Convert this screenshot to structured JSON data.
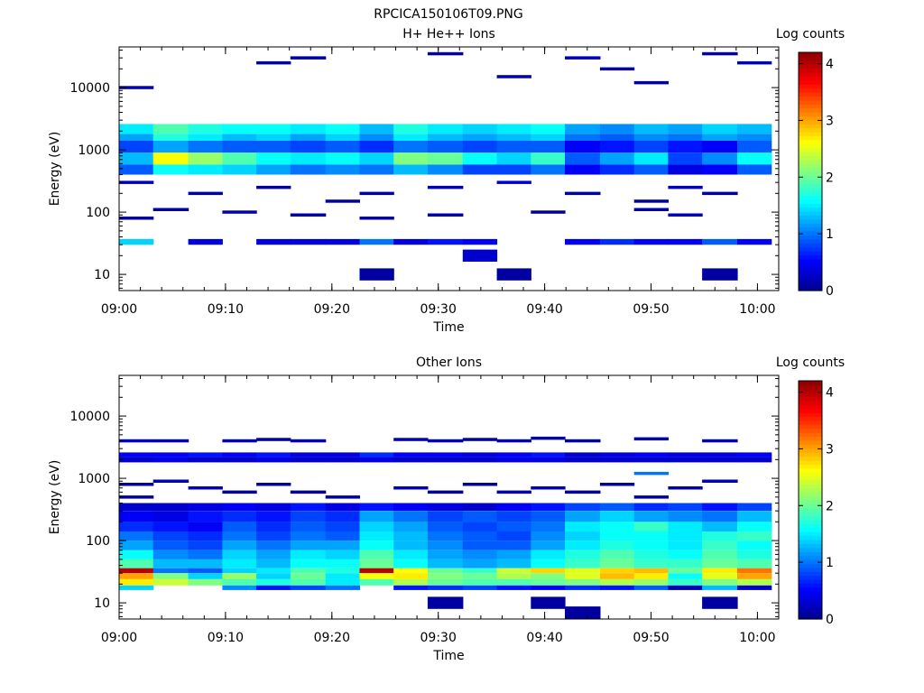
{
  "page_title": "RPCICA150106T09.PNG",
  "colormap": [
    "#00008b",
    "#0000ff",
    "#0080ff",
    "#00ffff",
    "#80ff80",
    "#ffff00",
    "#ff8000",
    "#ff0000",
    "#8b0000"
  ],
  "chart_data": [
    {
      "type": "heatmap",
      "title": "H+ He++ Ions",
      "xlabel": "Time",
      "ylabel": "Energy (eV)",
      "yscale": "log",
      "xlim": [
        "09:00",
        "10:02"
      ],
      "ylim": [
        5.5,
        45000
      ],
      "xticks": [
        "09:00",
        "09:10",
        "09:20",
        "09:30",
        "09:40",
        "09:50",
        "10:00"
      ],
      "yticks": [
        "10",
        "100",
        "1000",
        "10000"
      ],
      "colorbar": {
        "label": "Log counts",
        "range": [
          0,
          4.2
        ],
        "ticks": [
          "0",
          "1",
          "2",
          "3",
          "4"
        ]
      },
      "time_bins": [
        "09:00",
        "09:03.2",
        "09:06.5",
        "09:09.7",
        "09:12.9",
        "09:16.1",
        "09:19.4",
        "09:22.6",
        "09:25.8",
        "09:29.0",
        "09:32.3",
        "09:35.5",
        "09:38.7",
        "09:41.9",
        "09:45.2",
        "09:48.4",
        "09:51.6",
        "09:54.8",
        "09:58.1",
        "10:01.3"
      ],
      "bands": [
        {
          "e_min": 1800,
          "e_max": 2600,
          "values": [
            1.5,
            1.9,
            1.7,
            1.6,
            1.6,
            1.5,
            1.6,
            1.3,
            1.7,
            1.5,
            1.4,
            1.5,
            1.6,
            1.2,
            1.1,
            1.3,
            1.2,
            1.4,
            1.3
          ]
        },
        {
          "e_min": 1400,
          "e_max": 1800,
          "values": [
            1.2,
            1.7,
            1.5,
            1.3,
            1.4,
            1.2,
            1.4,
            1.1,
            1.5,
            1.3,
            1.2,
            1.3,
            1.4,
            1.0,
            0.9,
            1.1,
            1.0,
            1.2,
            1.1
          ]
        },
        {
          "e_min": 900,
          "e_max": 1400,
          "values": [
            0.8,
            1.2,
            1.0,
            0.9,
            0.9,
            0.8,
            0.9,
            0.7,
            1.0,
            0.9,
            0.8,
            0.9,
            0.9,
            0.5,
            0.6,
            0.8,
            0.6,
            0.5,
            0.9
          ]
        },
        {
          "e_min": 580,
          "e_max": 900,
          "values": [
            1.3,
            2.6,
            2.2,
            1.9,
            1.6,
            1.5,
            1.6,
            1.4,
            2.1,
            2.0,
            1.6,
            1.4,
            1.8,
            0.9,
            1.2,
            1.5,
            0.8,
            1.1,
            1.6
          ]
        },
        {
          "e_min": 400,
          "e_max": 580,
          "values": [
            0.9,
            1.6,
            1.5,
            1.4,
            1.2,
            1.0,
            1.1,
            1.0,
            1.3,
            1.1,
            0.8,
            0.8,
            1.0,
            0.5,
            0.7,
            0.9,
            0.4,
            0.5,
            0.9
          ]
        },
        {
          "e_min": 30,
          "e_max": 37,
          "values": [
            1.4,
            0,
            0.4,
            0,
            0.4,
            0.4,
            0.4,
            1.0,
            0.4,
            0.6,
            0.5,
            0,
            0,
            0.5,
            0.7,
            0.5,
            0.5,
            0.9,
            0.5
          ]
        }
      ],
      "cells": [
        [
          0,
          10000,
          0.2
        ],
        [
          4,
          25000,
          0.1
        ],
        [
          5,
          30000,
          0.1
        ],
        [
          9,
          35000,
          0.1
        ],
        [
          11,
          15000,
          0.2
        ],
        [
          13,
          30000,
          0.2
        ],
        [
          14,
          20000,
          0.1
        ],
        [
          15,
          12000,
          0.1
        ],
        [
          17,
          35000,
          0.1
        ],
        [
          18,
          25000,
          0.2
        ],
        [
          0,
          300,
          0.2
        ],
        [
          2,
          200,
          0.1
        ],
        [
          4,
          250,
          0.1
        ],
        [
          6,
          150,
          0.1
        ],
        [
          7,
          200,
          0.1
        ],
        [
          9,
          250,
          0.2
        ],
        [
          11,
          300,
          0.3
        ],
        [
          13,
          200,
          0.1
        ],
        [
          15,
          150,
          0.1
        ],
        [
          16,
          250,
          0.2
        ],
        [
          17,
          200,
          0.1
        ],
        [
          0,
          80,
          0.1
        ],
        [
          1,
          110,
          0.1
        ],
        [
          3,
          100,
          0.2
        ],
        [
          5,
          90,
          0.1
        ],
        [
          7,
          80,
          0.1
        ],
        [
          9,
          90,
          0.1
        ],
        [
          12,
          100,
          0.1
        ],
        [
          15,
          110,
          0.1
        ],
        [
          16,
          90,
          0.2
        ],
        [
          11,
          10,
          0.1
        ],
        [
          7,
          10,
          0.1
        ],
        [
          17,
          10,
          0.1
        ],
        [
          10,
          20,
          0.3
        ]
      ]
    },
    {
      "type": "heatmap",
      "title": "Other Ions",
      "xlabel": "Time",
      "ylabel": "Energy (eV)",
      "yscale": "log",
      "xlim": [
        "09:00",
        "10:02"
      ],
      "ylim": [
        5.5,
        45000
      ],
      "xticks": [
        "09:00",
        "09:10",
        "09:20",
        "09:30",
        "09:40",
        "09:50",
        "10:00"
      ],
      "yticks": [
        "10",
        "100",
        "1000",
        "10000"
      ],
      "colorbar": {
        "label": "Log counts",
        "range": [
          0,
          4.2
        ],
        "ticks": [
          "0",
          "1",
          "2",
          "3",
          "4"
        ]
      },
      "time_bins": [
        "09:00",
        "09:03.2",
        "09:06.5",
        "09:09.7",
        "09:12.9",
        "09:16.1",
        "09:19.4",
        "09:22.6",
        "09:25.8",
        "09:29.0",
        "09:32.3",
        "09:35.5",
        "09:38.7",
        "09:41.9",
        "09:45.2",
        "09:48.4",
        "09:51.6",
        "09:54.8",
        "09:58.1",
        "10:01.3"
      ],
      "bands": [
        {
          "e_min": 2200,
          "e_max": 2600,
          "values": [
            0.5,
            0.5,
            0.6,
            0.5,
            0.6,
            0.4,
            0.4,
            0.7,
            0.5,
            0.5,
            0.4,
            0.5,
            0.6,
            0.3,
            0.4,
            0.5,
            0.4,
            0.4,
            0.5
          ]
        },
        {
          "e_min": 1800,
          "e_max": 2200,
          "values": [
            0.3,
            0.4,
            0.3,
            0.3,
            0.4,
            0.3,
            0.3,
            0.4,
            0.3,
            0.3,
            0.3,
            0.4,
            0.4,
            0.3,
            0.3,
            0.3,
            0.3,
            0.3,
            0.3
          ]
        },
        {
          "e_min": 300,
          "e_max": 400,
          "values": [
            0.3,
            0.3,
            0.4,
            0.5,
            0.4,
            0.6,
            0.4,
            0.6,
            0.5,
            0.4,
            0.3,
            0.5,
            0.6,
            0.8,
            0.9,
            0.7,
            0.8,
            0.6,
            0.8
          ]
        },
        {
          "e_min": 200,
          "e_max": 300,
          "values": [
            0.5,
            0.4,
            0.6,
            0.7,
            0.6,
            0.8,
            0.7,
            1.2,
            1.0,
            0.8,
            0.9,
            0.8,
            0.9,
            1.2,
            1.4,
            1.2,
            1.1,
            1.0,
            1.3
          ]
        },
        {
          "e_min": 140,
          "e_max": 200,
          "values": [
            0.7,
            0.6,
            0.5,
            0.9,
            0.7,
            0.9,
            0.8,
            1.4,
            1.2,
            0.9,
            0.8,
            0.9,
            1.0,
            1.5,
            1.6,
            1.8,
            1.5,
            1.3,
            1.6
          ]
        },
        {
          "e_min": 100,
          "e_max": 140,
          "values": [
            1.0,
            0.8,
            0.7,
            1.0,
            0.8,
            1.0,
            0.9,
            1.5,
            1.3,
            1.0,
            0.9,
            0.8,
            1.1,
            1.4,
            1.6,
            1.6,
            1.5,
            1.7,
            1.8
          ]
        },
        {
          "e_min": 70,
          "e_max": 100,
          "values": [
            1.2,
            0.9,
            0.8,
            1.2,
            1.0,
            1.2,
            1.2,
            1.6,
            1.3,
            1.1,
            0.9,
            0.9,
            1.2,
            1.5,
            1.7,
            1.6,
            1.5,
            1.8,
            1.6
          ]
        },
        {
          "e_min": 50,
          "e_max": 70,
          "values": [
            1.6,
            1.1,
            1.0,
            1.4,
            1.2,
            1.5,
            1.4,
            1.9,
            1.5,
            1.2,
            1.1,
            1.2,
            1.5,
            1.7,
            1.9,
            1.7,
            1.6,
            1.9,
            1.7
          ]
        },
        {
          "e_min": 36,
          "e_max": 50,
          "values": [
            1.9,
            1.3,
            1.3,
            1.5,
            1.3,
            1.6,
            1.6,
            2.0,
            1.6,
            1.3,
            1.2,
            1.3,
            1.6,
            1.8,
            2.0,
            1.8,
            1.8,
            2.0,
            1.9
          ]
        },
        {
          "e_min": 30,
          "e_max": 36,
          "values": [
            4.0,
            1.0,
            0.9,
            1.4,
            1.5,
            1.9,
            1.7,
            4.0,
            2.6,
            2.0,
            1.8,
            2.4,
            2.8,
            2.5,
            2.8,
            2.9,
            2.0,
            2.7,
            3.2
          ]
        },
        {
          "e_min": 24,
          "e_max": 30,
          "values": [
            3.0,
            2.1,
            1.4,
            2.2,
            1.4,
            2.0,
            1.5,
            2.6,
            2.7,
            2.1,
            2.0,
            2.3,
            2.1,
            2.5,
            2.9,
            2.7,
            1.6,
            2.5,
            3.0
          ]
        },
        {
          "e_min": 19,
          "e_max": 24,
          "values": [
            2.7,
            2.4,
            2.1,
            1.9,
            1.7,
            1.9,
            1.5,
            1.9,
            2.3,
            2.0,
            1.9,
            1.9,
            2.0,
            2.1,
            2.3,
            2.2,
            1.8,
            2.1,
            2.3
          ]
        },
        {
          "e_min": 16,
          "e_max": 19,
          "values": [
            1.4,
            0,
            0,
            1.1,
            0.6,
            0.8,
            1.0,
            0,
            0.6,
            0.7,
            0.8,
            0.6,
            0.5,
            0.7,
            0.6,
            0.9,
            0.2,
            1.3,
            0.3
          ]
        }
      ],
      "cells": [
        [
          0,
          4000,
          0.3
        ],
        [
          1,
          4000,
          0.2
        ],
        [
          3,
          4000,
          0.2
        ],
        [
          4,
          4200,
          0.1
        ],
        [
          5,
          4000,
          0.2
        ],
        [
          8,
          4200,
          0.2
        ],
        [
          9,
          4000,
          0.2
        ],
        [
          10,
          4200,
          0.1
        ],
        [
          11,
          4000,
          0.2
        ],
        [
          12,
          4400,
          0.1
        ],
        [
          13,
          4000,
          0.1
        ],
        [
          15,
          4300,
          0.1
        ],
        [
          17,
          4000,
          0.2
        ],
        [
          0,
          800,
          0.1
        ],
        [
          1,
          900,
          0.2
        ],
        [
          2,
          700,
          0.2
        ],
        [
          4,
          800,
          0.1
        ],
        [
          5,
          600,
          0.1
        ],
        [
          8,
          700,
          0.2
        ],
        [
          10,
          800,
          0.1
        ],
        [
          12,
          700,
          0.2
        ],
        [
          13,
          600,
          0.1
        ],
        [
          14,
          800,
          0.1
        ],
        [
          15,
          1200,
          1.0
        ],
        [
          16,
          700,
          0.1
        ],
        [
          17,
          900,
          0.2
        ],
        [
          0,
          500,
          0.1
        ],
        [
          3,
          600,
          0.1
        ],
        [
          6,
          500,
          0.1
        ],
        [
          9,
          600,
          0.1
        ],
        [
          11,
          600,
          0.2
        ],
        [
          15,
          500,
          0.1
        ],
        [
          9,
          10,
          0.1
        ],
        [
          12,
          10,
          0.1
        ],
        [
          13,
          7,
          0.1
        ],
        [
          17,
          10,
          0.1
        ]
      ]
    }
  ]
}
